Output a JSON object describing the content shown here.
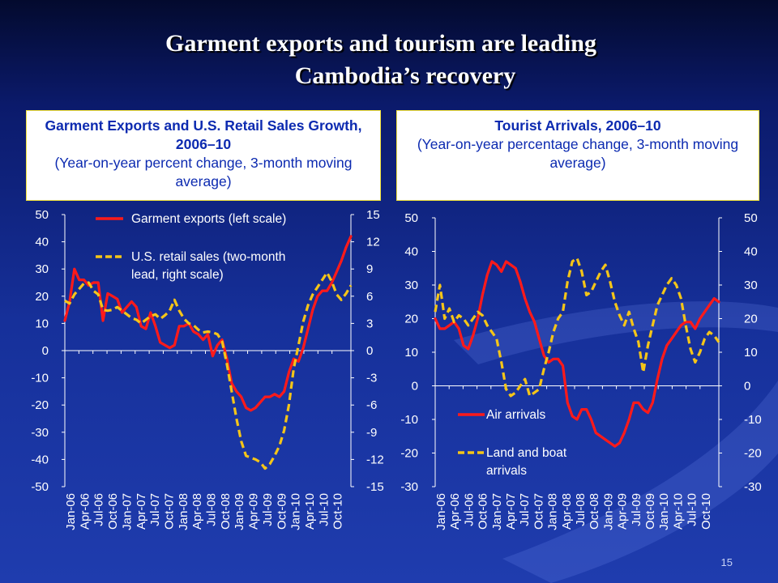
{
  "slide": {
    "title_line1": "Garment exports and tourism are leading",
    "title_line2": "Cambodia’s recovery",
    "page_number": "15"
  },
  "colors": {
    "red": "#ff1a1a",
    "gold": "#f5c518",
    "axis": "#ffffff",
    "background": "#16309a"
  },
  "chart_data": [
    {
      "type": "line",
      "title": "Garment Exports and U.S. Retail Sales Growth, 2006–10",
      "subtitle": "(Year-on-year percent change, 3-month moving average)",
      "x_tick_labels": [
        "Jan-06",
        "Apr-06",
        "Jul-06",
        "Oct-06",
        "Jan-07",
        "Apr-07",
        "Jul-07",
        "Oct-07",
        "Jan-08",
        "Apr-08",
        "Jul-08",
        "Oct-08",
        "Jan-09",
        "Apr-09",
        "Jul-09",
        "Oct-09",
        "Jan-10",
        "Apr-10",
        "Jul-10",
        "Oct-10"
      ],
      "y_left": {
        "ticks": [
          "50",
          "40",
          "30",
          "20",
          "10",
          "0",
          "-10",
          "-20",
          "-30",
          "-40",
          "-50"
        ],
        "range": [
          -50,
          50
        ]
      },
      "y_right": {
        "ticks": [
          "15",
          "12",
          "9",
          "6",
          "3",
          "0",
          "-3",
          "-6",
          "-9",
          "-12",
          "-15"
        ],
        "range": [
          -15,
          15
        ]
      },
      "legend": [
        "Garment exports (left scale)",
        "U.S. retail sales (two-month lead, right scale)"
      ],
      "legend_lines": [
        "Garment exports (left scale)",
        "U.S. retail sales (two-month",
        "lead, right scale)"
      ],
      "series": [
        {
          "name": "Garment exports (left scale)",
          "axis": "left",
          "color": "#ff1a1a",
          "style": "solid",
          "values": [
            11,
            18,
            30,
            26,
            26,
            24,
            25,
            25,
            11,
            21,
            20,
            19,
            14,
            16,
            18,
            16,
            9,
            8,
            14,
            9,
            3,
            2,
            1,
            2,
            9,
            9,
            10,
            7,
            6,
            4,
            6,
            -2,
            2,
            4,
            -3,
            -12,
            -15,
            -17,
            -21,
            -22,
            -21,
            -19,
            -17,
            -17,
            -16,
            -17,
            -15,
            -8,
            -3,
            -4,
            1,
            8,
            15,
            20,
            22,
            22,
            25,
            29,
            33,
            38,
            42
          ]
        },
        {
          "name": "U.S. retail sales (two-month lead, right scale)",
          "axis": "right",
          "color": "#f5c518",
          "style": "dashed",
          "values": [
            5.5,
            5.2,
            6.2,
            6.8,
            7.4,
            7.5,
            6.6,
            6.2,
            4.5,
            4.4,
            4.5,
            4.8,
            4.4,
            4.0,
            3.6,
            3.4,
            3.0,
            3.4,
            3.8,
            4.0,
            3.5,
            3.9,
            4.4,
            5.6,
            4.4,
            3.5,
            3.0,
            2.8,
            2.3,
            2.0,
            2.1,
            2.0,
            1.8,
            1.0,
            -1.5,
            -4.5,
            -7.5,
            -10,
            -11.6,
            -11.8,
            -12,
            -12.3,
            -13,
            -12.5,
            -11.6,
            -10.5,
            -8.8,
            -6.0,
            -2.0,
            0.6,
            3.2,
            5.0,
            6.2,
            7.0,
            7.8,
            8.6,
            7.6,
            6.2,
            5.6,
            6.3,
            7.2
          ]
        }
      ]
    },
    {
      "type": "line",
      "title": "Tourist Arrivals, 2006–10",
      "subtitle": "(Year-on-year percentage change, 3-month moving average)",
      "x_tick_labels": [
        "Jan-06",
        "Apr-06",
        "Jul-06",
        "Oct-06",
        "Jan-07",
        "Apr-07",
        "Jul-07",
        "Oct-07",
        "Jan-08",
        "Apr-08",
        "Jul-08",
        "Oct-08",
        "Jan-09",
        "Apr-09",
        "Jul-09",
        "Oct-09",
        "Jan-10",
        "Apr-10",
        "Jul-10",
        "Oct-10"
      ],
      "y_left": {
        "ticks": [
          "50",
          "40",
          "30",
          "20",
          "10",
          "0",
          "-10",
          "-20",
          "-30"
        ],
        "range": [
          -30,
          50
        ]
      },
      "y_right": {
        "ticks": [
          "50",
          "40",
          "30",
          "20",
          "10",
          "0",
          "-10",
          "-20",
          "-30"
        ],
        "range": [
          -30,
          50
        ]
      },
      "legend": [
        "Air arrivals",
        "Land and boat arrivals"
      ],
      "legend_lines": [
        "Air arrivals",
        "Land and boat",
        "arrivals"
      ],
      "series": [
        {
          "name": "Air arrivals",
          "color": "#ff1a1a",
          "style": "solid",
          "values": [
            20,
            17,
            17,
            18,
            19,
            17,
            12,
            11,
            15,
            20,
            27,
            33,
            37,
            36,
            34,
            37,
            36,
            35,
            31,
            26,
            22,
            19,
            14,
            9,
            7,
            8,
            8,
            6,
            -5,
            -9,
            -10,
            -7,
            -7,
            -10,
            -14,
            -15,
            -16,
            -17,
            -18,
            -17,
            -14,
            -10,
            -5,
            -5,
            -7,
            -8,
            -5,
            2,
            8,
            12,
            14,
            16,
            18,
            19,
            19,
            17,
            20,
            22,
            24,
            26,
            25
          ]
        },
        {
          "name": "Land and boat arrivals",
          "color": "#f5c518",
          "style": "dashed",
          "values": [
            22,
            30,
            20,
            23,
            19,
            21,
            20,
            18,
            20,
            22,
            21,
            18,
            16,
            14,
            7,
            -1,
            -3,
            -2,
            0,
            2,
            -3,
            -2,
            -1,
            5,
            10,
            16,
            20,
            22,
            31,
            37,
            38,
            34,
            27,
            28,
            31,
            34,
            36,
            31,
            25,
            21,
            18,
            22,
            17,
            13,
            4,
            12,
            18,
            24,
            27,
            30,
            32,
            30,
            26,
            18,
            11,
            7,
            10,
            14,
            16,
            15,
            13
          ]
        }
      ]
    }
  ]
}
